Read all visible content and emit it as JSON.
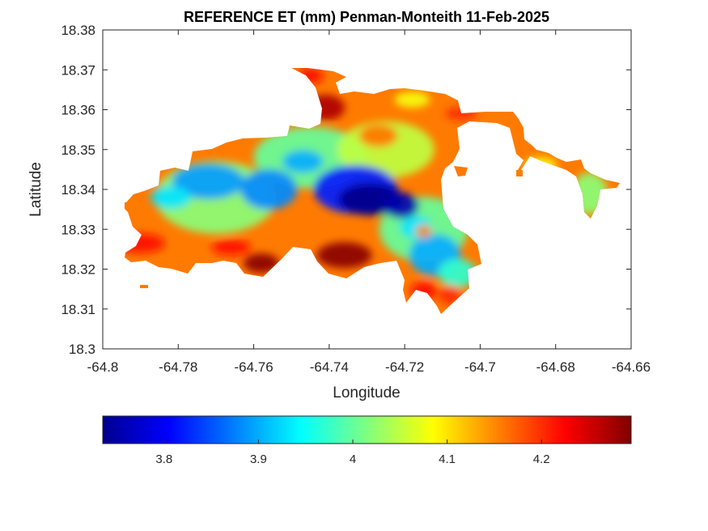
{
  "chart_data": {
    "type": "heatmap",
    "title": "REFERENCE ET (mm) Penman-Monteith 11-Feb-2025",
    "xlabel": "Longitude",
    "ylabel": "Latitude",
    "xlim": [
      -64.8,
      -64.66
    ],
    "ylim": [
      18.3,
      18.38
    ],
    "xticks": [
      -64.8,
      -64.78,
      -64.76,
      -64.74,
      -64.72,
      -64.7,
      -64.68,
      -64.66
    ],
    "xtick_labels": [
      "-64.8",
      "-64.78",
      "-64.76",
      "-64.74",
      "-64.72",
      "-64.7",
      "-64.68",
      "-64.66"
    ],
    "yticks": [
      18.3,
      18.31,
      18.32,
      18.33,
      18.34,
      18.35,
      18.36,
      18.37,
      18.38
    ],
    "ytick_labels": [
      "18.3",
      "18.31",
      "18.32",
      "18.33",
      "18.34",
      "18.35",
      "18.36",
      "18.37",
      "18.38"
    ],
    "colormap": "jet",
    "colorbar": {
      "location": "bottom",
      "range": [
        3.735,
        4.295
      ],
      "ticks": [
        3.8,
        3.9,
        4,
        4.1,
        4.2
      ],
      "tick_labels": [
        "3.8",
        "3.9",
        "4",
        "4.1",
        "4.2"
      ]
    },
    "value_range": [
      3.74,
      4.29
    ],
    "features": [
      {
        "name": "central-low",
        "lon": -64.728,
        "lat": 18.3375,
        "value": 3.74
      },
      {
        "name": "west-low",
        "lon": -64.765,
        "lat": 18.341,
        "value": 3.87
      },
      {
        "name": "south-east-low",
        "lon": -64.713,
        "lat": 18.3225,
        "value": 3.89
      },
      {
        "name": "east-islet",
        "lon": -64.671,
        "lat": 18.339,
        "value": 4.02
      },
      {
        "name": "north-high",
        "lon": -64.74,
        "lat": 18.3605,
        "value": 4.27
      },
      {
        "name": "south-high",
        "lon": -64.735,
        "lat": 18.3225,
        "value": 4.28
      },
      {
        "name": "south-west-high",
        "lon": -64.758,
        "lat": 18.3215,
        "value": 4.29
      },
      {
        "name": "north-east-high",
        "lon": -64.727,
        "lat": 18.3535,
        "value": 4.16
      },
      {
        "name": "north-west-high",
        "lon": -64.787,
        "lat": 18.343,
        "value": 4.22
      }
    ]
  }
}
